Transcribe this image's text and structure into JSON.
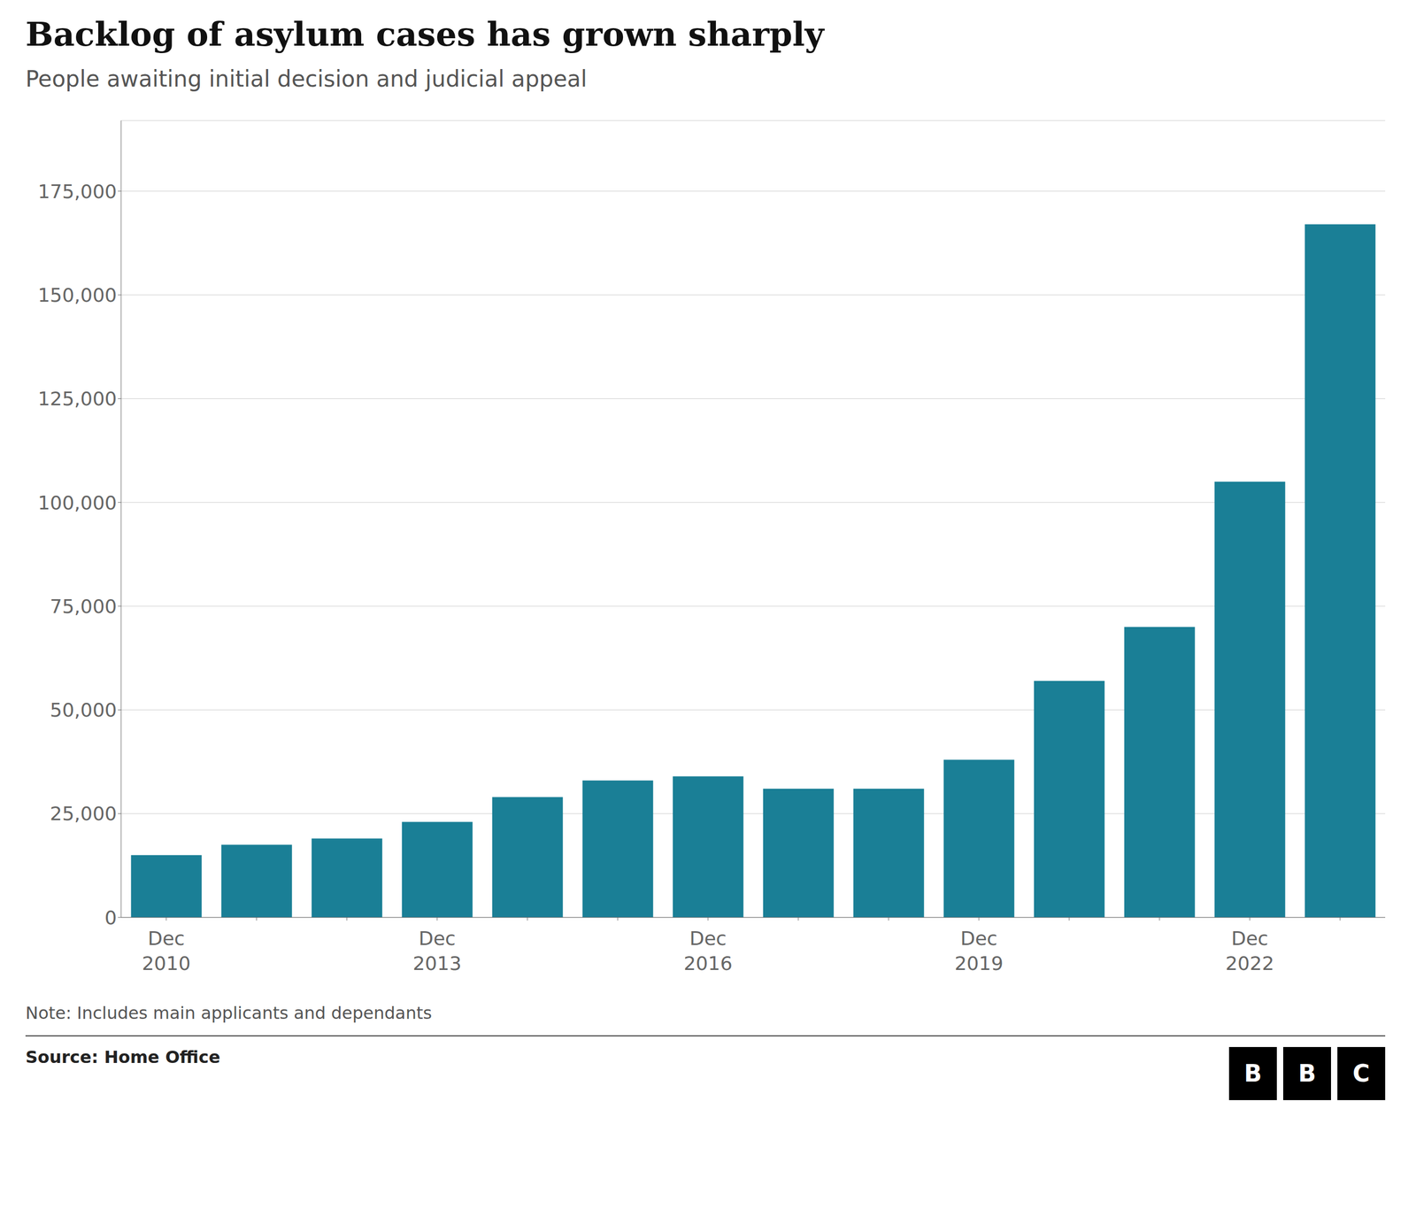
{
  "chart_data": {
    "type": "bar",
    "title": "Backlog of asylum cases has grown sharply",
    "subtitle": "People awaiting initial decision and judicial appeal",
    "note": "Note: Includes main applicants and dependants",
    "source": "Source: Home Office",
    "logo": "BBC",
    "categories": [
      "Dec\n2010",
      null,
      null,
      "Dec\n2013",
      null,
      null,
      "Dec\n2016",
      null,
      null,
      "Dec\n2019",
      null,
      null,
      "Dec\n2022",
      null
    ],
    "values": [
      15000,
      17500,
      19000,
      23000,
      29000,
      33000,
      34000,
      31000,
      31000,
      38000,
      57000,
      70000,
      105000,
      167000
    ],
    "color": "#1a7f96",
    "ylim": [
      0,
      192000
    ],
    "yticks": [
      0,
      {
        "value": 25000,
        "label": "25,000"
      },
      {
        "value": 50000,
        "label": "50,000"
      },
      {
        "value": 75000,
        "label": "75,000"
      },
      {
        "value": 100000,
        "label": "100,000"
      },
      {
        "value": 125000,
        "label": "125,000"
      },
      {
        "value": 150000,
        "label": "150,000"
      },
      {
        "value": 175000,
        "label": "175,000"
      }
    ],
    "grid": true
  }
}
